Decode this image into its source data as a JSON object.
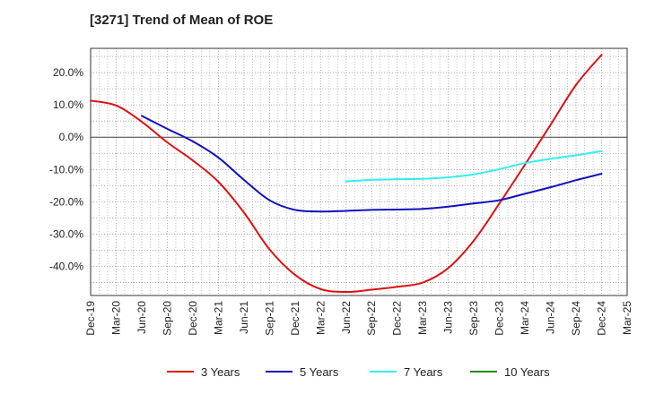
{
  "title": "[3271]  Trend of Mean of ROE",
  "chart_data": {
    "type": "line",
    "title": "[3271]  Trend of Mean of ROE",
    "xlabel": "",
    "ylabel": "",
    "x_categories": [
      "Dec-19",
      "Mar-20",
      "Jun-20",
      "Sep-20",
      "Dec-20",
      "Mar-21",
      "Jun-21",
      "Sep-21",
      "Dec-21",
      "Mar-22",
      "Jun-22",
      "Sep-22",
      "Dec-22",
      "Mar-23",
      "Jun-23",
      "Sep-23",
      "Dec-23",
      "Mar-24",
      "Jun-24",
      "Sep-24",
      "Dec-24",
      "Mar-25"
    ],
    "ylim": [
      -49,
      27.5
    ],
    "yticks": [
      20,
      10,
      0,
      -10,
      -20,
      -30,
      -40
    ],
    "ytick_labels": [
      "20.0%",
      "10.0%",
      "0.0%",
      "-10.0%",
      "-20.0%",
      "-30.0%",
      "-40.0%"
    ],
    "grid": true,
    "legend_position": "bottom",
    "series": [
      {
        "name": "3 Years",
        "color": "#dd1111",
        "values": [
          11.3,
          9.8,
          4.8,
          -1.6,
          -7.2,
          -13.8,
          -23.3,
          -34.7,
          -42.6,
          -47.0,
          -47.9,
          -47.2,
          -46.3,
          -45.0,
          -40.5,
          -32.0,
          -20.5,
          -8.5,
          3.8,
          16.2,
          25.5,
          null
        ]
      },
      {
        "name": "5 Years",
        "color": "#1111bb",
        "values": [
          null,
          null,
          6.6,
          2.6,
          -1.3,
          -6.3,
          -13.2,
          -19.5,
          -22.5,
          -23.0,
          -22.8,
          -22.5,
          -22.4,
          -22.2,
          -21.5,
          -20.5,
          -19.5,
          -17.5,
          -15.5,
          -13.3,
          -11.3,
          null
        ]
      },
      {
        "name": "7 Years",
        "color": "#33eeee",
        "values": [
          null,
          null,
          null,
          null,
          null,
          null,
          null,
          null,
          null,
          null,
          -13.7,
          -13.2,
          -13.0,
          -12.9,
          -12.4,
          -11.5,
          -9.9,
          -8.0,
          -6.7,
          -5.6,
          -4.3,
          null
        ]
      },
      {
        "name": "10 Years",
        "color": "#228822",
        "values": [
          null,
          null,
          null,
          null,
          null,
          null,
          null,
          null,
          null,
          null,
          null,
          null,
          null,
          null,
          null,
          null,
          null,
          null,
          null,
          null,
          null,
          null
        ]
      }
    ]
  }
}
